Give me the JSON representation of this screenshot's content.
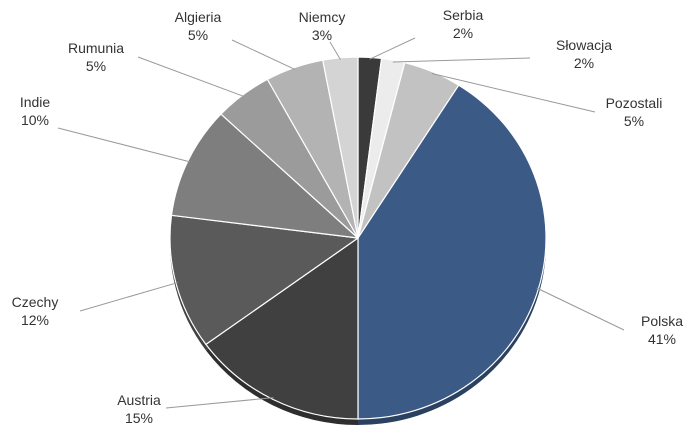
{
  "chart_data": {
    "type": "pie",
    "title": "",
    "start_angle_deg": 90,
    "direction": "clockwise",
    "slices": [
      {
        "name": "Serbia",
        "value": 2,
        "color": "#3a3a3a"
      },
      {
        "name": "Słowacja",
        "value": 2,
        "color": "#ececec"
      },
      {
        "name": "Pozostali",
        "value": 5,
        "color": "#c2c2c2"
      },
      {
        "name": "Polska",
        "value": 41,
        "color": "#3c5a86"
      },
      {
        "name": "Austria",
        "value": 15,
        "color": "#404040"
      },
      {
        "name": "Czechy",
        "value": 12,
        "color": "#5a5a5a"
      },
      {
        "name": "Indie",
        "value": 10,
        "color": "#7e7e7e"
      },
      {
        "name": "Rumunia",
        "value": 5,
        "color": "#9b9b9b"
      },
      {
        "name": "Algieria",
        "value": 5,
        "color": "#b3b3b3"
      },
      {
        "name": "Niemcy",
        "value": 3,
        "color": "#d4d4d4"
      }
    ],
    "value_suffix": "%"
  }
}
